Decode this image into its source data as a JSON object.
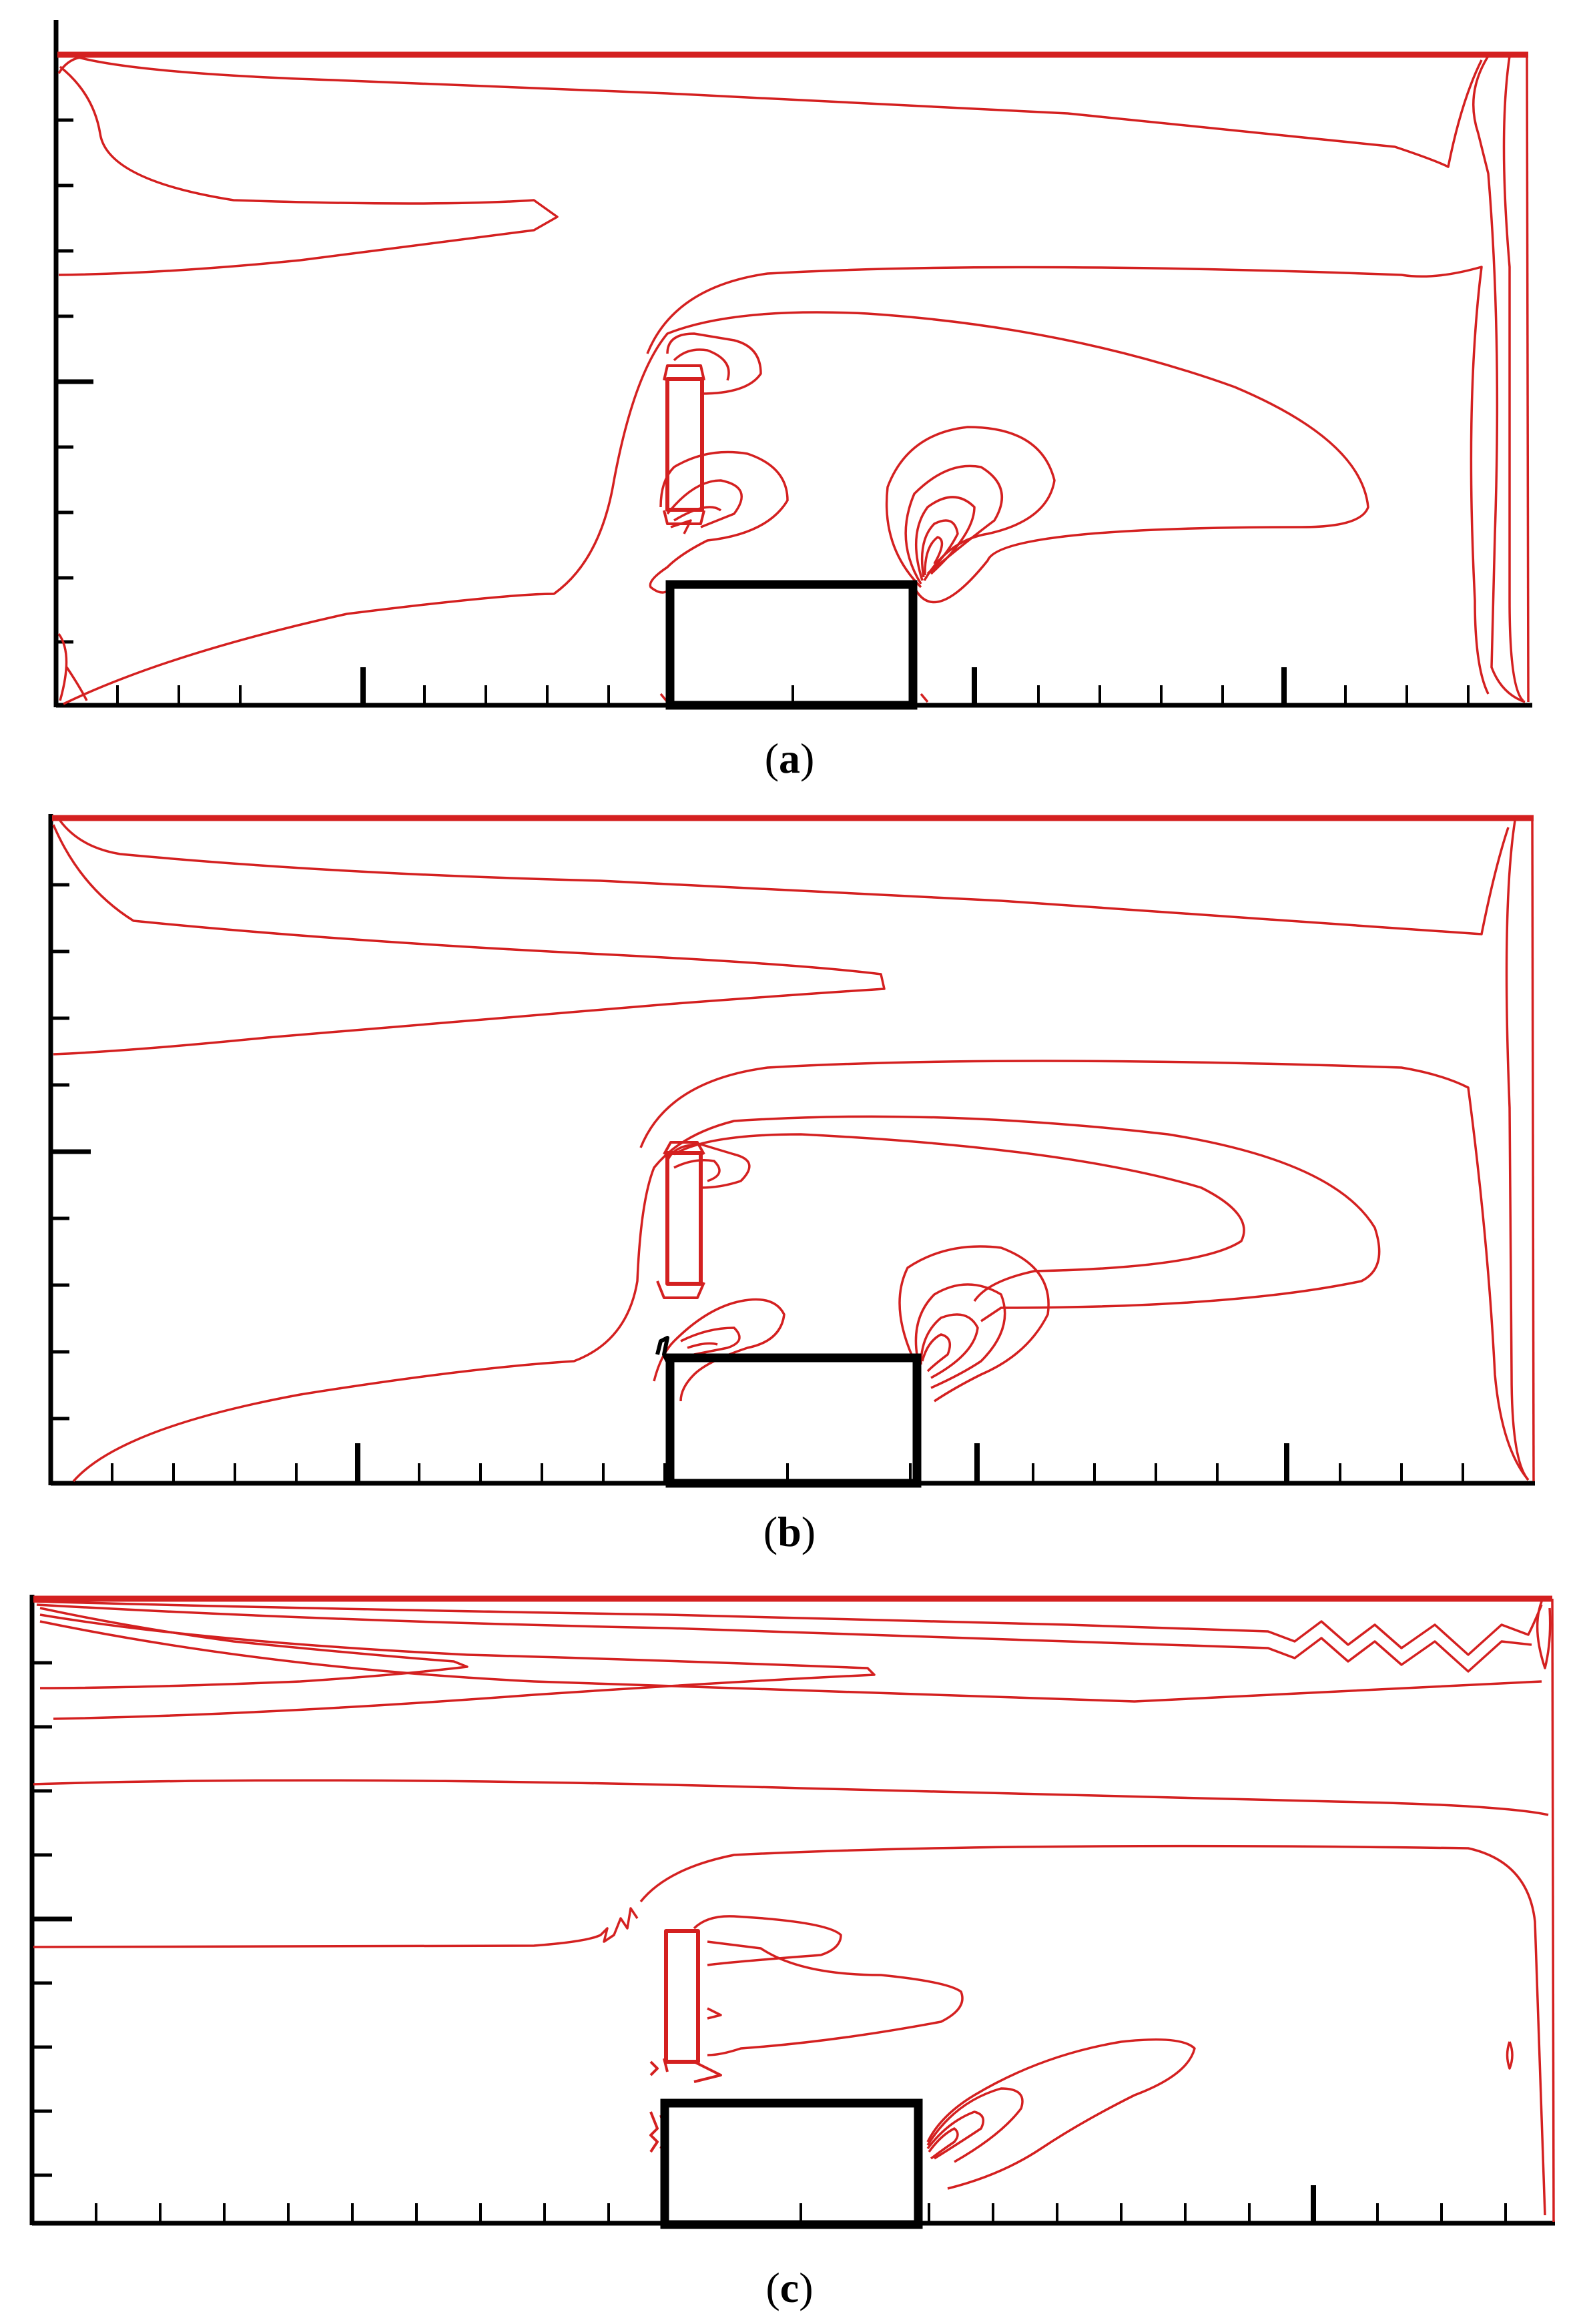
{
  "figure": {
    "panels": [
      {
        "id": "a",
        "label_open": "(",
        "label_letter": "a",
        "label_close": ")"
      },
      {
        "id": "b",
        "label_open": "(",
        "label_letter": "b",
        "label_close": ")"
      },
      {
        "id": "c",
        "label_open": "(",
        "label_letter": "c",
        "label_close": ")"
      }
    ]
  },
  "colors": {
    "contour": "#d42020",
    "axes": "#000000",
    "obstacle": "#000000",
    "background": "#ffffff"
  }
}
